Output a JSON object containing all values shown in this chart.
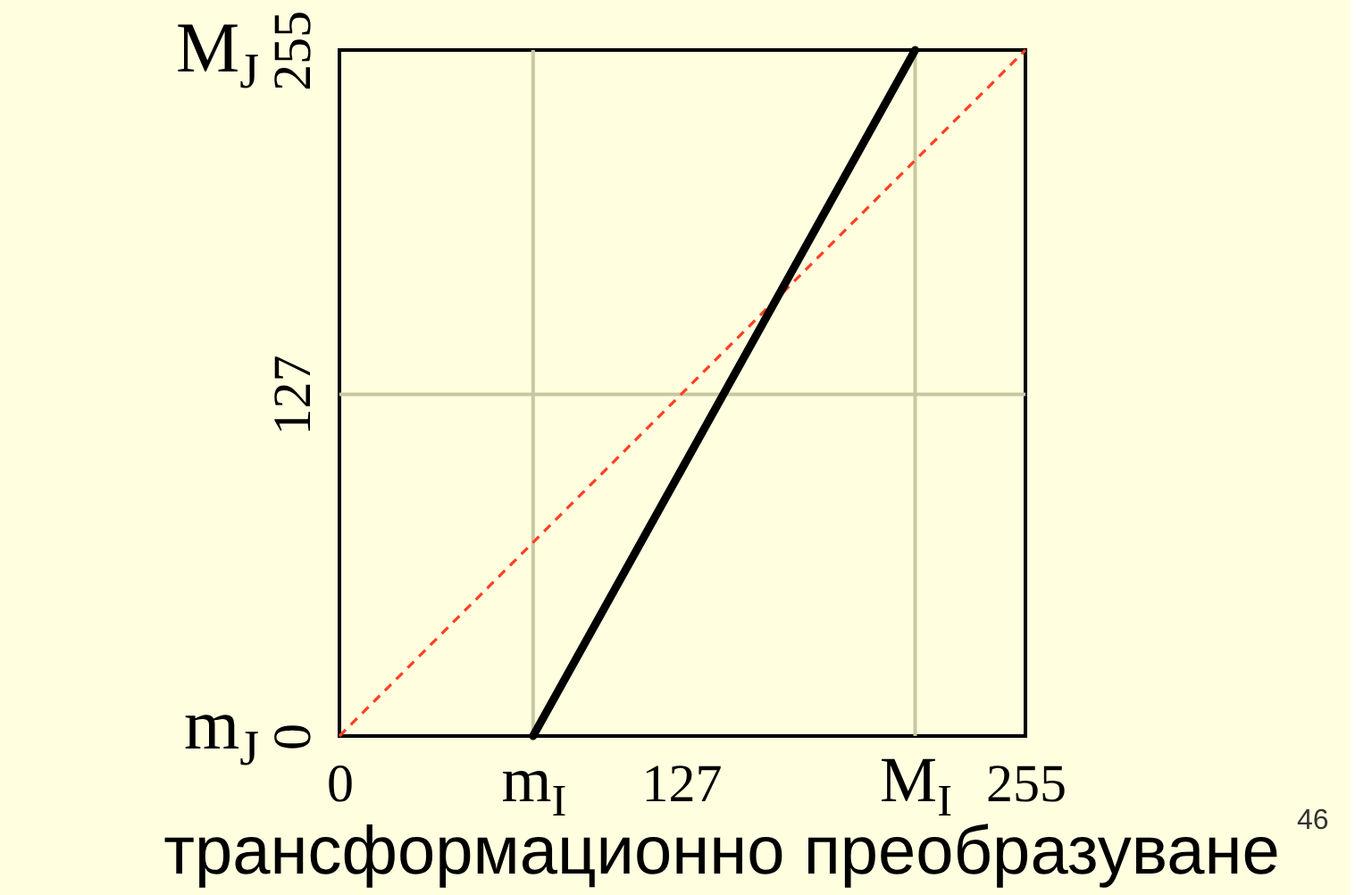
{
  "chart_data": {
    "type": "line",
    "title": "трансформационно преобразуване",
    "xlim": [
      0,
      255
    ],
    "ylim": [
      0,
      255
    ],
    "xticks": [
      0,
      {
        "value": 72,
        "label": "m$_{I}$"
      },
      127,
      {
        "value": 214,
        "label": "M$_{I}$"
      },
      255
    ],
    "yticks": [
      0,
      127,
      255
    ],
    "series": [
      {
        "color": "#ff4020",
        "line_style": "dashed",
        "x": [
          0,
          255
        ],
        "values": [
          0,
          255
        ]
      },
      {
        "color": "#000000",
        "line_style": "solid",
        "x": [
          72,
          214
        ],
        "values": [
          0,
          255
        ]
      }
    ],
    "ref_lines": [
      {
        "axis": "x",
        "value": 72,
        "color": "#c8c8a0"
      },
      {
        "axis": "x",
        "value": 214,
        "color": "#c8c8a0"
      },
      {
        "axis": "y",
        "value": 127,
        "color": "#c8c8a0"
      }
    ],
    "annotations": [
      "M$_{J}$",
      "m$_{J}$",
      "46"
    ]
  }
}
